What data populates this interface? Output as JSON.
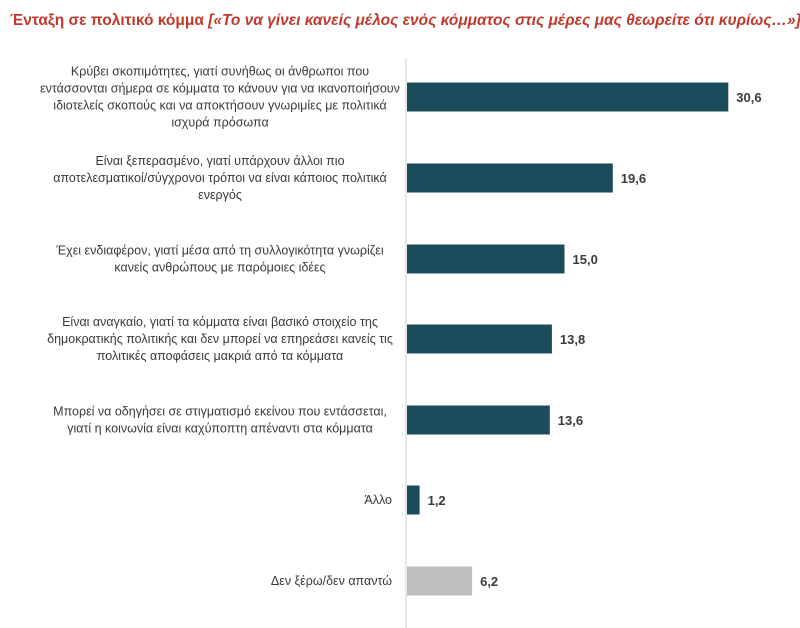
{
  "title": {
    "main": "Ένταξη σε πολιτικό κόμμα",
    "question": "[«Το να γίνει κανείς μέλος ενός κόμματος στις μέρες μας θεωρείτε ότι κυρίως…»]"
  },
  "colors": {
    "title": "#c0392b",
    "bar": "#1b4c5c",
    "bar_muted": "#bfbfbf",
    "axis": "#cfcfcf"
  },
  "chart_data": {
    "type": "bar",
    "orientation": "horizontal",
    "xlim": [
      0,
      35
    ],
    "grid": false,
    "categories": [
      [
        "Κρύβει σκοπιμότητες, γιατί συνήθως οι άνθρωποι που",
        "εντάσσονται σήμερα σε κόμματα το κάνουν για να ικανοποιήσουν",
        "ιδιοτελείς σκοπούς και να αποκτήσουν γνωριμίες με πολιτικά",
        "ισχυρά πρόσωπα"
      ],
      [
        "Είναι ξεπερασμένο, γιατί υπάρχουν άλλοι πιο",
        "αποτελεσματικοί/σύγχρονοι  τρόποι να είναι κάποιος πολιτικά",
        "ενεργός"
      ],
      [
        "Έχει ενδιαφέρον, γιατί μέσα από τη συλλογικότητα γνωρίζει",
        "κανείς ανθρώπους με παρόμοιες ιδέες"
      ],
      [
        "Είναι αναγκαίο, γιατί τα κόμματα είναι βασικό στοιχείο της",
        "δημοκρατικής πολιτικής και δεν μπορεί να επηρεάσει κανείς τις",
        "πολιτικές αποφάσεις μακριά από τα κόμματα"
      ],
      [
        "Μπορεί να οδηγήσει σε στιγματισμό εκείνου που εντάσσεται,",
        "γιατί η κοινωνία είναι καχύποπτη απέναντι στα κόμματα"
      ],
      [
        "Άλλο"
      ],
      [
        "Δεν ξέρω/δεν απαντώ"
      ]
    ],
    "values": [
      30.6,
      19.6,
      15.0,
      13.8,
      13.6,
      1.2,
      6.2
    ],
    "value_labels": [
      "30,6",
      "19,6",
      "15,0",
      "13,8",
      "13,6",
      "1,2",
      "6,2"
    ],
    "muted_bars": [
      6
    ]
  }
}
